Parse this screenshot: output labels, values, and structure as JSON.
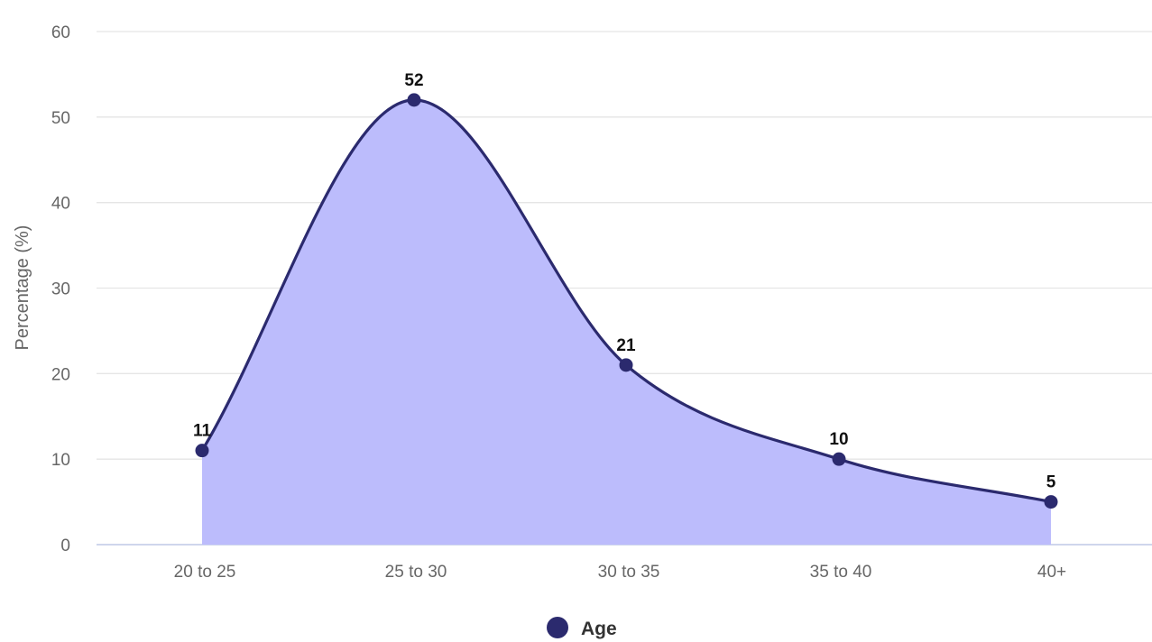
{
  "chart_data": {
    "type": "area",
    "title": "",
    "xlabel": "",
    "ylabel": "Percentage (%)",
    "categories": [
      "20 to 25",
      "25 to 30",
      "30 to 35",
      "35 to 40",
      "40+"
    ],
    "series": [
      {
        "name": "Age",
        "values": [
          11,
          52,
          21,
          10,
          5
        ]
      }
    ],
    "yticks": [
      "0",
      "10",
      "20",
      "30",
      "40",
      "50",
      "60"
    ],
    "ylim": [
      0,
      60
    ],
    "grid": true,
    "legend_position": "bottom",
    "smooth": true,
    "colors": {
      "line": "#2b2a6e",
      "fill": "#bcbcfc",
      "marker": "#2b2a6e",
      "grid": "#e5e5e5",
      "baseline": "#cfd6ec"
    }
  }
}
